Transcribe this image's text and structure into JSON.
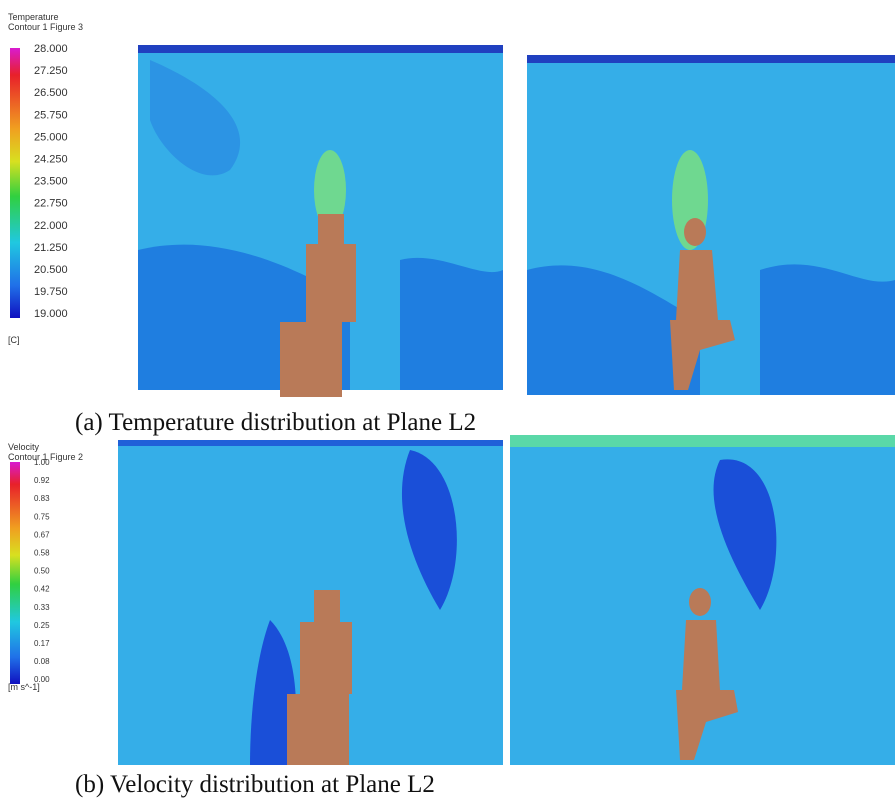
{
  "panels": [
    {
      "legend": {
        "title": "Temperature",
        "subtitle": "Contour 1 Figure 3",
        "ticks": [
          "28.000",
          "27.250",
          "26.500",
          "25.750",
          "25.000",
          "24.250",
          "23.500",
          "22.750",
          "22.000",
          "21.250",
          "20.500",
          "19.750",
          "19.000"
        ],
        "unit": "[C]"
      },
      "caption": "(a) Temperature distribution at Plane L2"
    },
    {
      "legend": {
        "title": "Velocity",
        "subtitle": "Contour 1 Figure 2",
        "ticks": [
          "1.00",
          "0.92",
          "0.83",
          "0.75",
          "0.67",
          "0.58",
          "0.50",
          "0.42",
          "0.33",
          "0.25",
          "0.17",
          "0.08",
          "0.00"
        ],
        "unit": "[m s^-1]"
      },
      "caption": "(b) Velocity distribution at Plane L2"
    }
  ]
}
